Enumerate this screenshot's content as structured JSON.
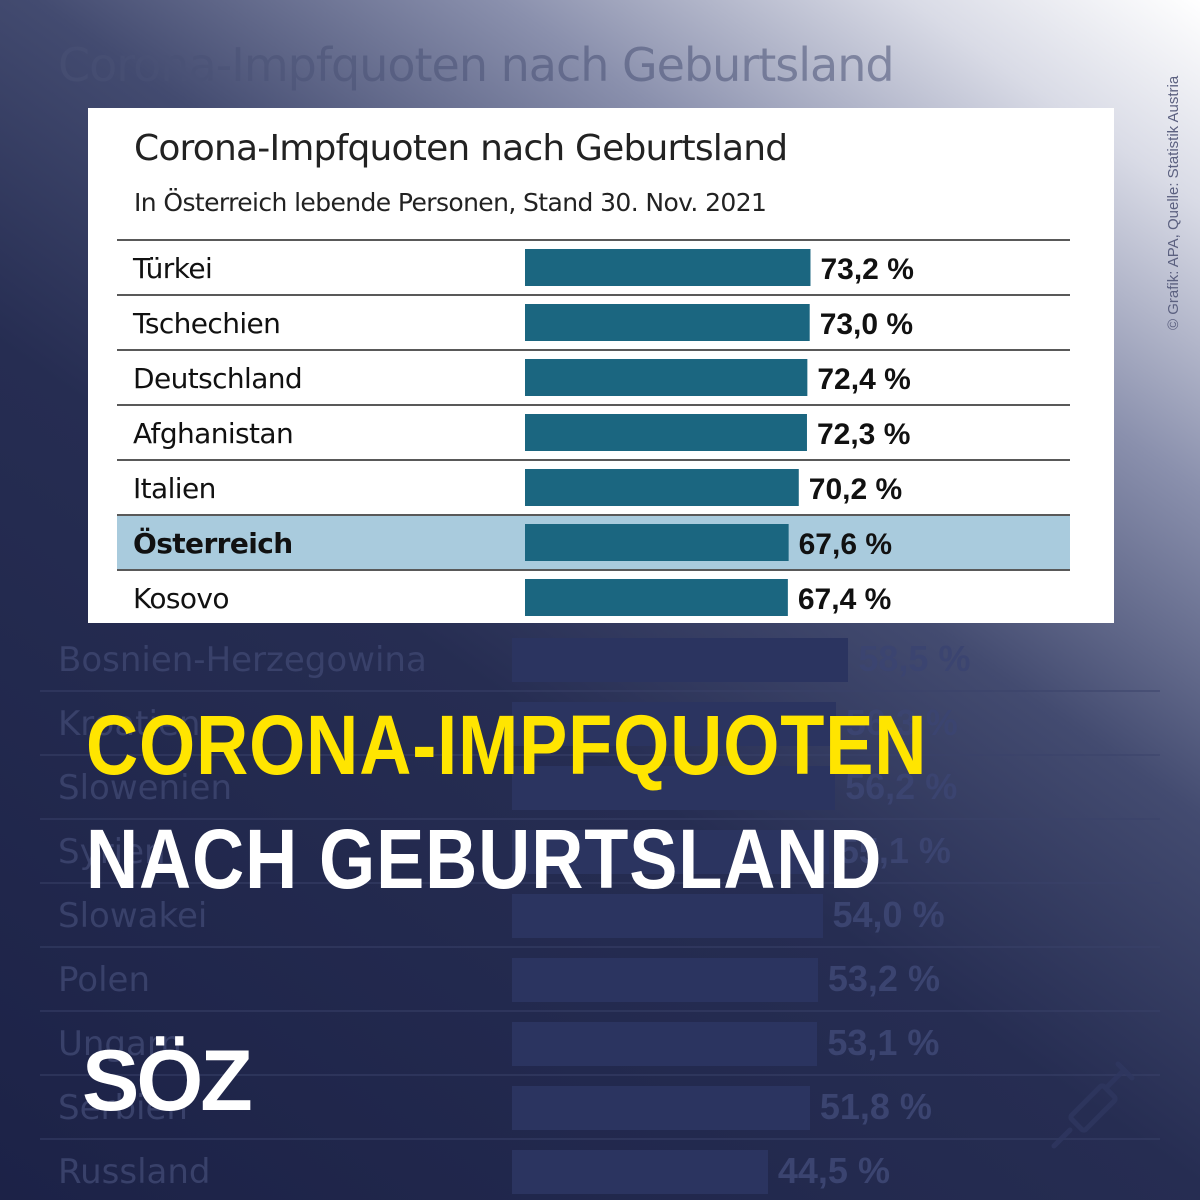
{
  "background": {
    "title": "Corona-Impfquoten nach Geburtsland",
    "rows": [
      {
        "label": "Bosnien-Herzegowina",
        "value": 58.5,
        "value_label": "58,5 %"
      },
      {
        "label": "Kroatien",
        "value": 56.3,
        "value_label": "56,3 %"
      },
      {
        "label": "Slowenien",
        "value": 56.2,
        "value_label": "56,2 %"
      },
      {
        "label": "Syrien",
        "value": 55.1,
        "value_label": "55,1 %"
      },
      {
        "label": "Slowakei",
        "value": 54.0,
        "value_label": "54,0 %"
      },
      {
        "label": "Polen",
        "value": 53.2,
        "value_label": "53,2 %"
      },
      {
        "label": "Ungarn",
        "value": 53.1,
        "value_label": "53,1 %"
      },
      {
        "label": "Serbien",
        "value": 51.8,
        "value_label": "51,8 %"
      },
      {
        "label": "Russland",
        "value": 44.5,
        "value_label": "44,5 %"
      }
    ]
  },
  "chart_data": {
    "type": "bar",
    "orientation": "horizontal",
    "title": "Corona-Impfquoten nach Geburtsland",
    "subtitle": "In Österreich lebende Personen, Stand 30. Nov. 2021",
    "categories": [
      "Türkei",
      "Tschechien",
      "Deutschland",
      "Afghanistan",
      "Italien",
      "Österreich",
      "Kosovo"
    ],
    "values": [
      73.2,
      73.0,
      72.4,
      72.3,
      70.2,
      67.6,
      67.4
    ],
    "value_labels": [
      "73,2 %",
      "73,0 %",
      "72,4 %",
      "72,3 %",
      "70,2 %",
      "67,6 %",
      "67,4 %"
    ],
    "highlight": "Österreich",
    "bar_color": "#1b6680",
    "highlight_color": "#a9cbdd"
  },
  "headline": {
    "line1": "CORONA-IMPFQUOTEN",
    "line2": "NACH GEBURTSLAND"
  },
  "brand": {
    "logo": "SÖZ"
  },
  "credit": "© Grafik: APA, Quelle: Statistik Austria",
  "icons": {
    "syringe": "syringe-icon"
  },
  "colors": {
    "headline_yellow": "#ffe500",
    "background_navy": "#1c2247"
  }
}
